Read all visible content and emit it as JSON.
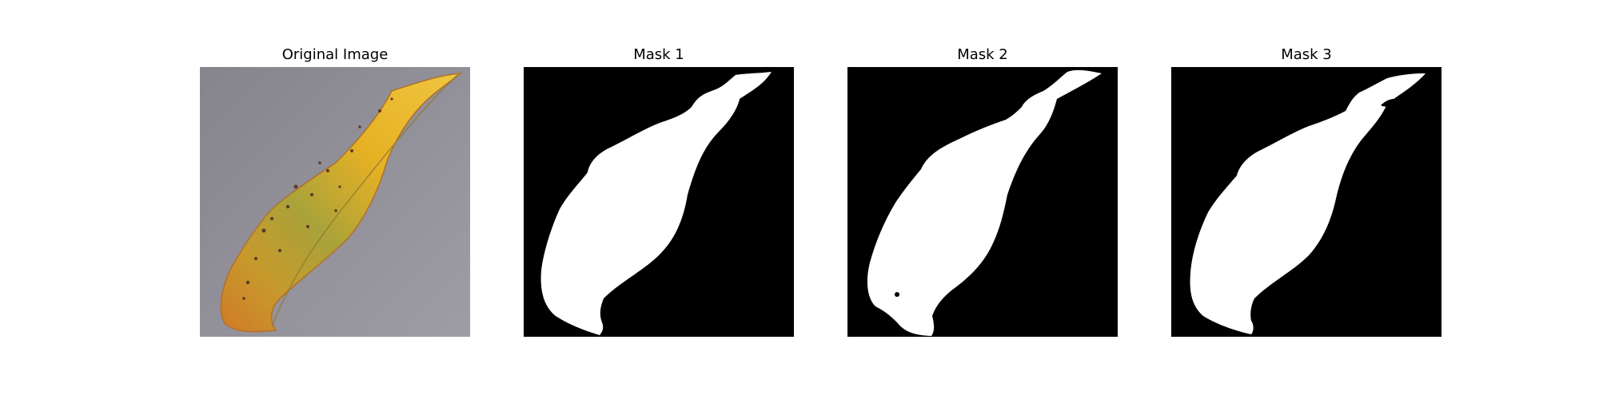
{
  "panels": [
    {
      "id": "original",
      "title": "Original Image"
    },
    {
      "id": "mask1",
      "title": "Mask 1"
    },
    {
      "id": "mask2",
      "title": "Mask 2"
    },
    {
      "id": "mask3",
      "title": "Mask 3"
    }
  ],
  "colors": {
    "background": "#ffffff",
    "mask_background": "#000000",
    "mask_foreground": "#ffffff",
    "photo_background": "#8f8d95",
    "leaf_yellow": "#e0b21f",
    "leaf_orange": "#d98a2a",
    "leaf_green": "#8e9a3a",
    "leaf_spots": "#5a3a2a"
  },
  "image_description_icons": [
    "leaf-photo",
    "segmentation-mask"
  ]
}
